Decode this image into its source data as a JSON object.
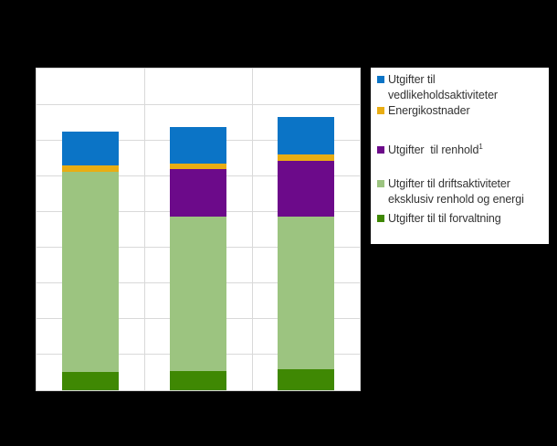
{
  "figure": {
    "background_color": "#000000",
    "plot_background_color": "#ffffff",
    "gridline_color": "#d9d9d9",
    "legend_border_color": "#000000",
    "legend_text_color": "#333333"
  },
  "legend": {
    "items": [
      {
        "label": "Utgifter til\nvedlikeholdsaktiviteter",
        "color": "#0b74c6"
      },
      {
        "label": "Energikostnader",
        "color": "#e9ad13"
      },
      {
        "label": "Utgifter  til renhold",
        "superscript": "1",
        "color": "#6c0a8a"
      },
      {
        "label": "Utgifter til driftsaktiviteter\neksklusiv renhold og energi",
        "color": "#9cc480"
      },
      {
        "label": "Utgifter til til forvaltning",
        "color": "#3f8803"
      }
    ]
  },
  "chart_data": {
    "type": "bar",
    "stacked": true,
    "title": "",
    "xlabel": "",
    "ylabel": "",
    "categories": [
      "",
      "",
      ""
    ],
    "tick_labels_visible": false,
    "grid": true,
    "legend_position": "right",
    "ylim": [
      0,
      900
    ],
    "y_gridline_step": 100,
    "x_column_separators": 2,
    "series": [
      {
        "name": "Utgifter til til forvaltning",
        "color": "#3f8803",
        "values": [
          50,
          55,
          58
        ]
      },
      {
        "name": "Utgifter til driftsaktiviteter eksklusiv renhold og energi",
        "color": "#9cc480",
        "values": [
          560,
          430,
          428
        ]
      },
      {
        "name": "Utgifter til renhold",
        "color": "#6c0a8a",
        "values": [
          0,
          133,
          156
        ]
      },
      {
        "name": "Energikostnader",
        "color": "#e9ad13",
        "values": [
          19,
          17,
          17
        ]
      },
      {
        "name": "Utgifter til vedlikeholdsaktiviteter",
        "color": "#0b74c6",
        "values": [
          94,
          102,
          106
        ]
      }
    ],
    "note_values_estimated_from_gridlines": true
  }
}
